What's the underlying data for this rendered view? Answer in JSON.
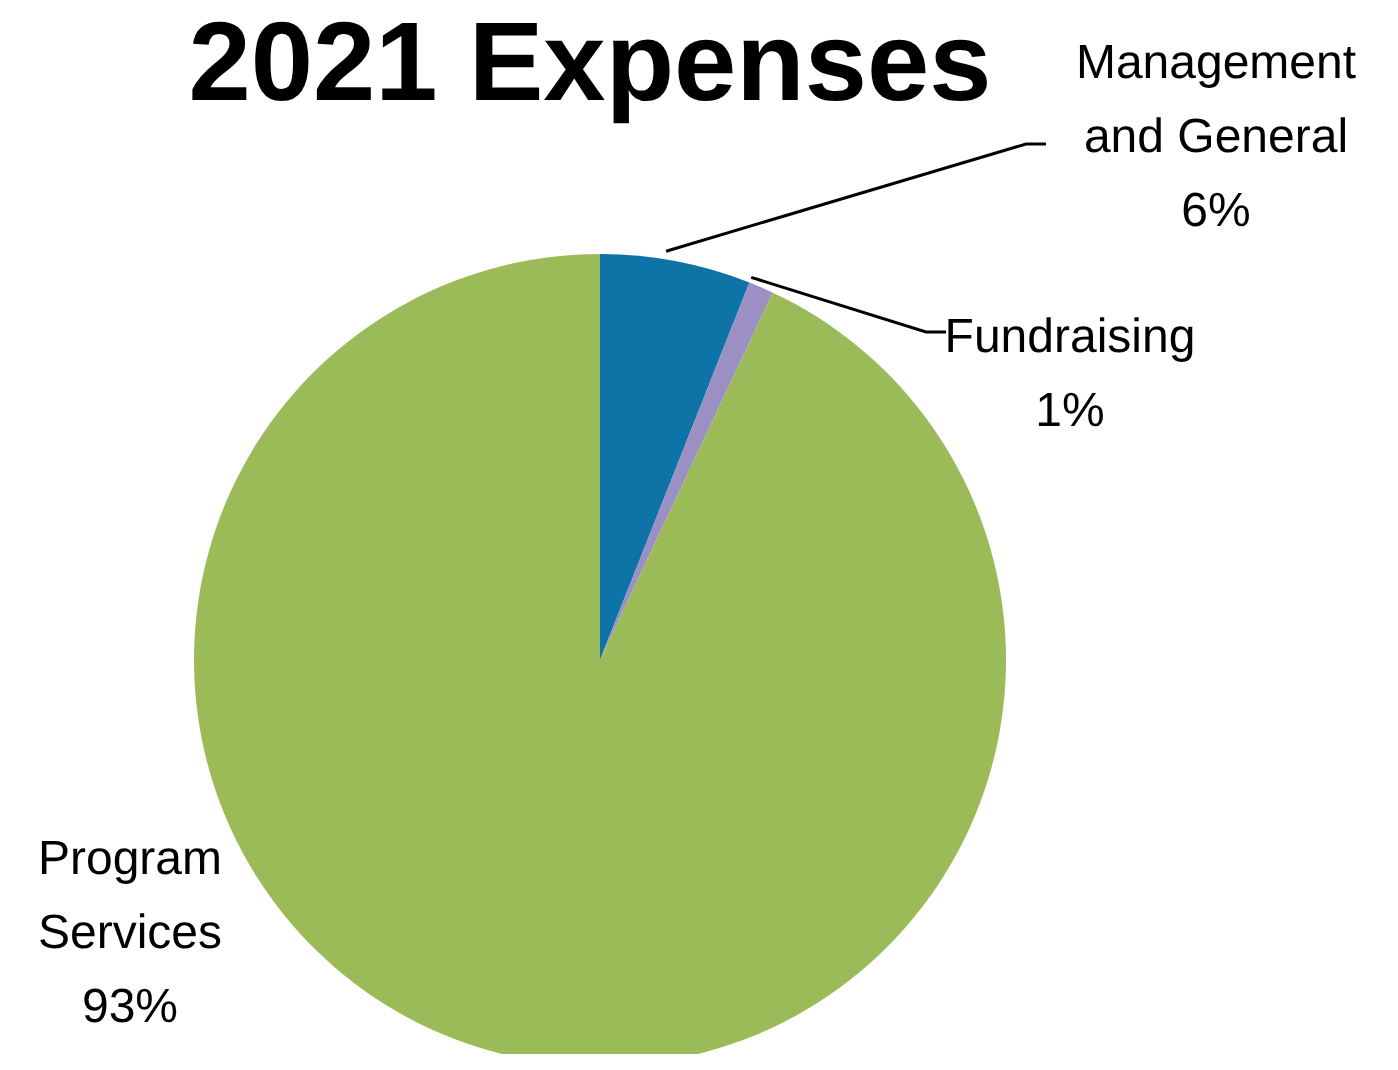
{
  "chart_data": {
    "type": "pie",
    "title": "2021 Expenses",
    "categories": [
      "Management and General",
      "Fundraising",
      "Program Services"
    ],
    "values": [
      6,
      1,
      93
    ],
    "colors": [
      "#0e74a8",
      "#9b8fc4",
      "#9bbb59"
    ],
    "value_labels": [
      "6%",
      "1%",
      "93%"
    ],
    "legend": false
  }
}
